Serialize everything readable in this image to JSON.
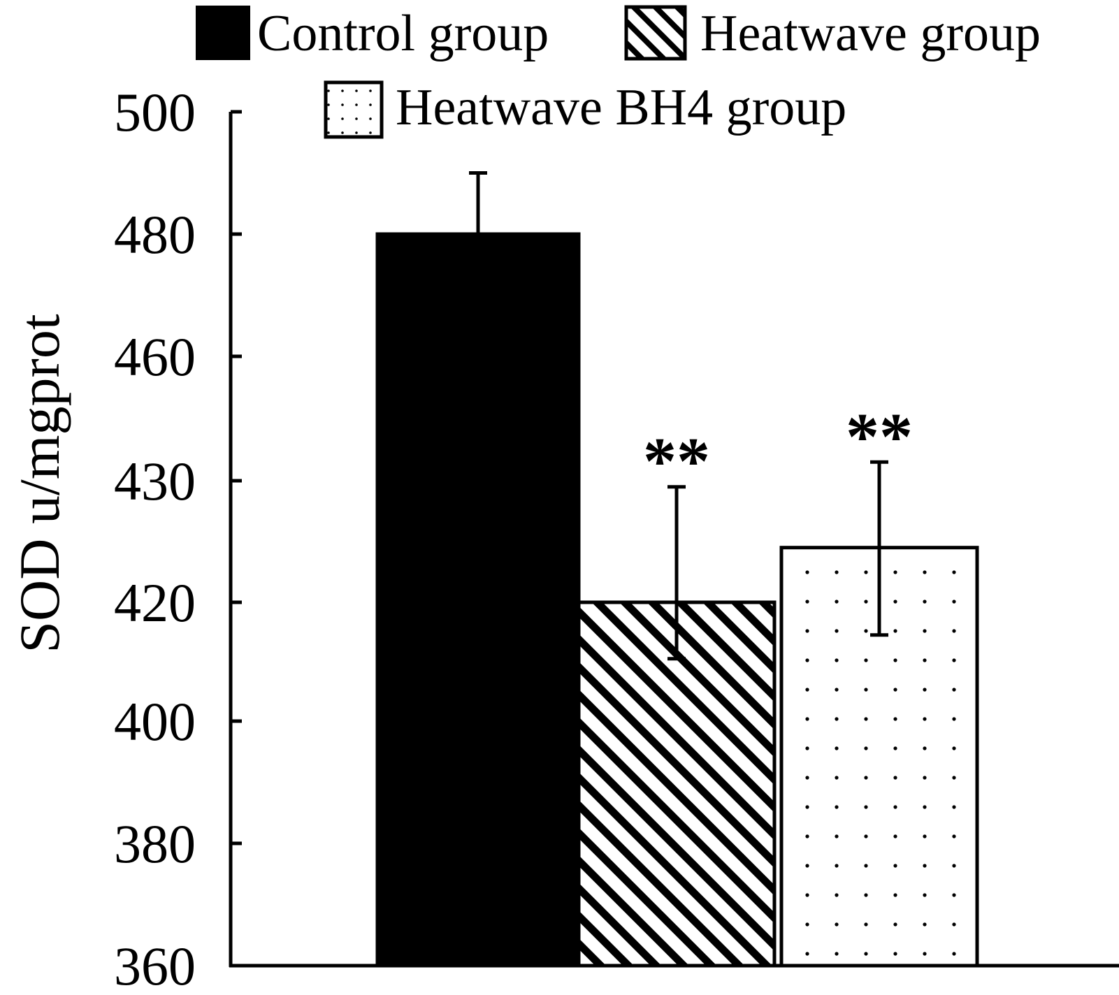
{
  "chart_data": {
    "type": "bar",
    "ylabel": "SOD u/mgprot",
    "xlabel": "",
    "y_ticks": [
      360,
      380,
      400,
      420,
      430,
      460,
      480,
      500
    ],
    "categories": [
      "Control group",
      "Heatwave group",
      "Heatwave BH4 group"
    ],
    "series": [
      {
        "name": "Control group",
        "value": 480,
        "error": 10,
        "fill": "solid",
        "significance": ""
      },
      {
        "name": "Heatwave group",
        "value": 420,
        "error": 9.5,
        "fill": "diagonal-stripes",
        "significance": "**"
      },
      {
        "name": "Heatwave BH4 group",
        "value": 424.5,
        "error": 10,
        "fill": "dots",
        "significance": "**"
      }
    ],
    "legend_position": "top",
    "grid": false,
    "colors": {
      "ink": "#000000",
      "paper": "#ffffff"
    }
  }
}
